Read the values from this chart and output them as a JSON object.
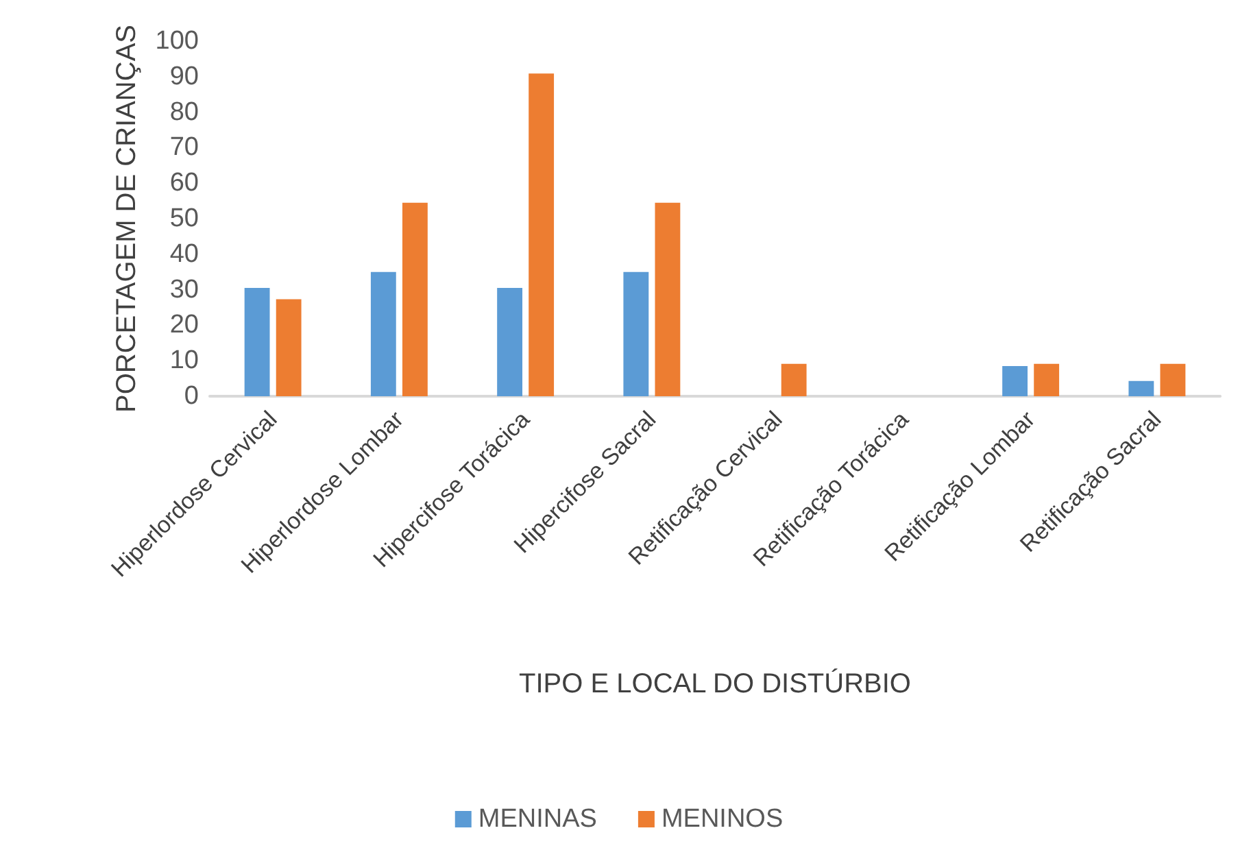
{
  "chart_data": {
    "type": "bar",
    "xlabel": "TIPO E LOCAL DO DISTÚRBIO",
    "ylabel": "PORCETAGEM DE CRIANÇAS",
    "categories": [
      "Hiperlordose Cervical",
      "Hiperlordose Lombar",
      "Hipercifose Torácica",
      "Hipercifose Sacral",
      "Retificação Cervical",
      "Retificação Torácica",
      "Retificação Lombar",
      "Retificação Sacral"
    ],
    "series": [
      {
        "name": "MENINAS",
        "color": "#5b9bd5",
        "values": [
          30.5,
          35,
          30.5,
          35,
          0,
          0,
          8.5,
          4.3
        ]
      },
      {
        "name": "MENINOS",
        "color": "#ed7d31",
        "values": [
          27.3,
          54.5,
          90.9,
          54.5,
          9.1,
          0,
          9.1,
          9.1
        ]
      }
    ],
    "ylim": [
      0,
      100
    ],
    "yticks": [
      0,
      10,
      20,
      30,
      40,
      50,
      60,
      70,
      80,
      90,
      100
    ],
    "grid": false,
    "legend": "bottom"
  }
}
